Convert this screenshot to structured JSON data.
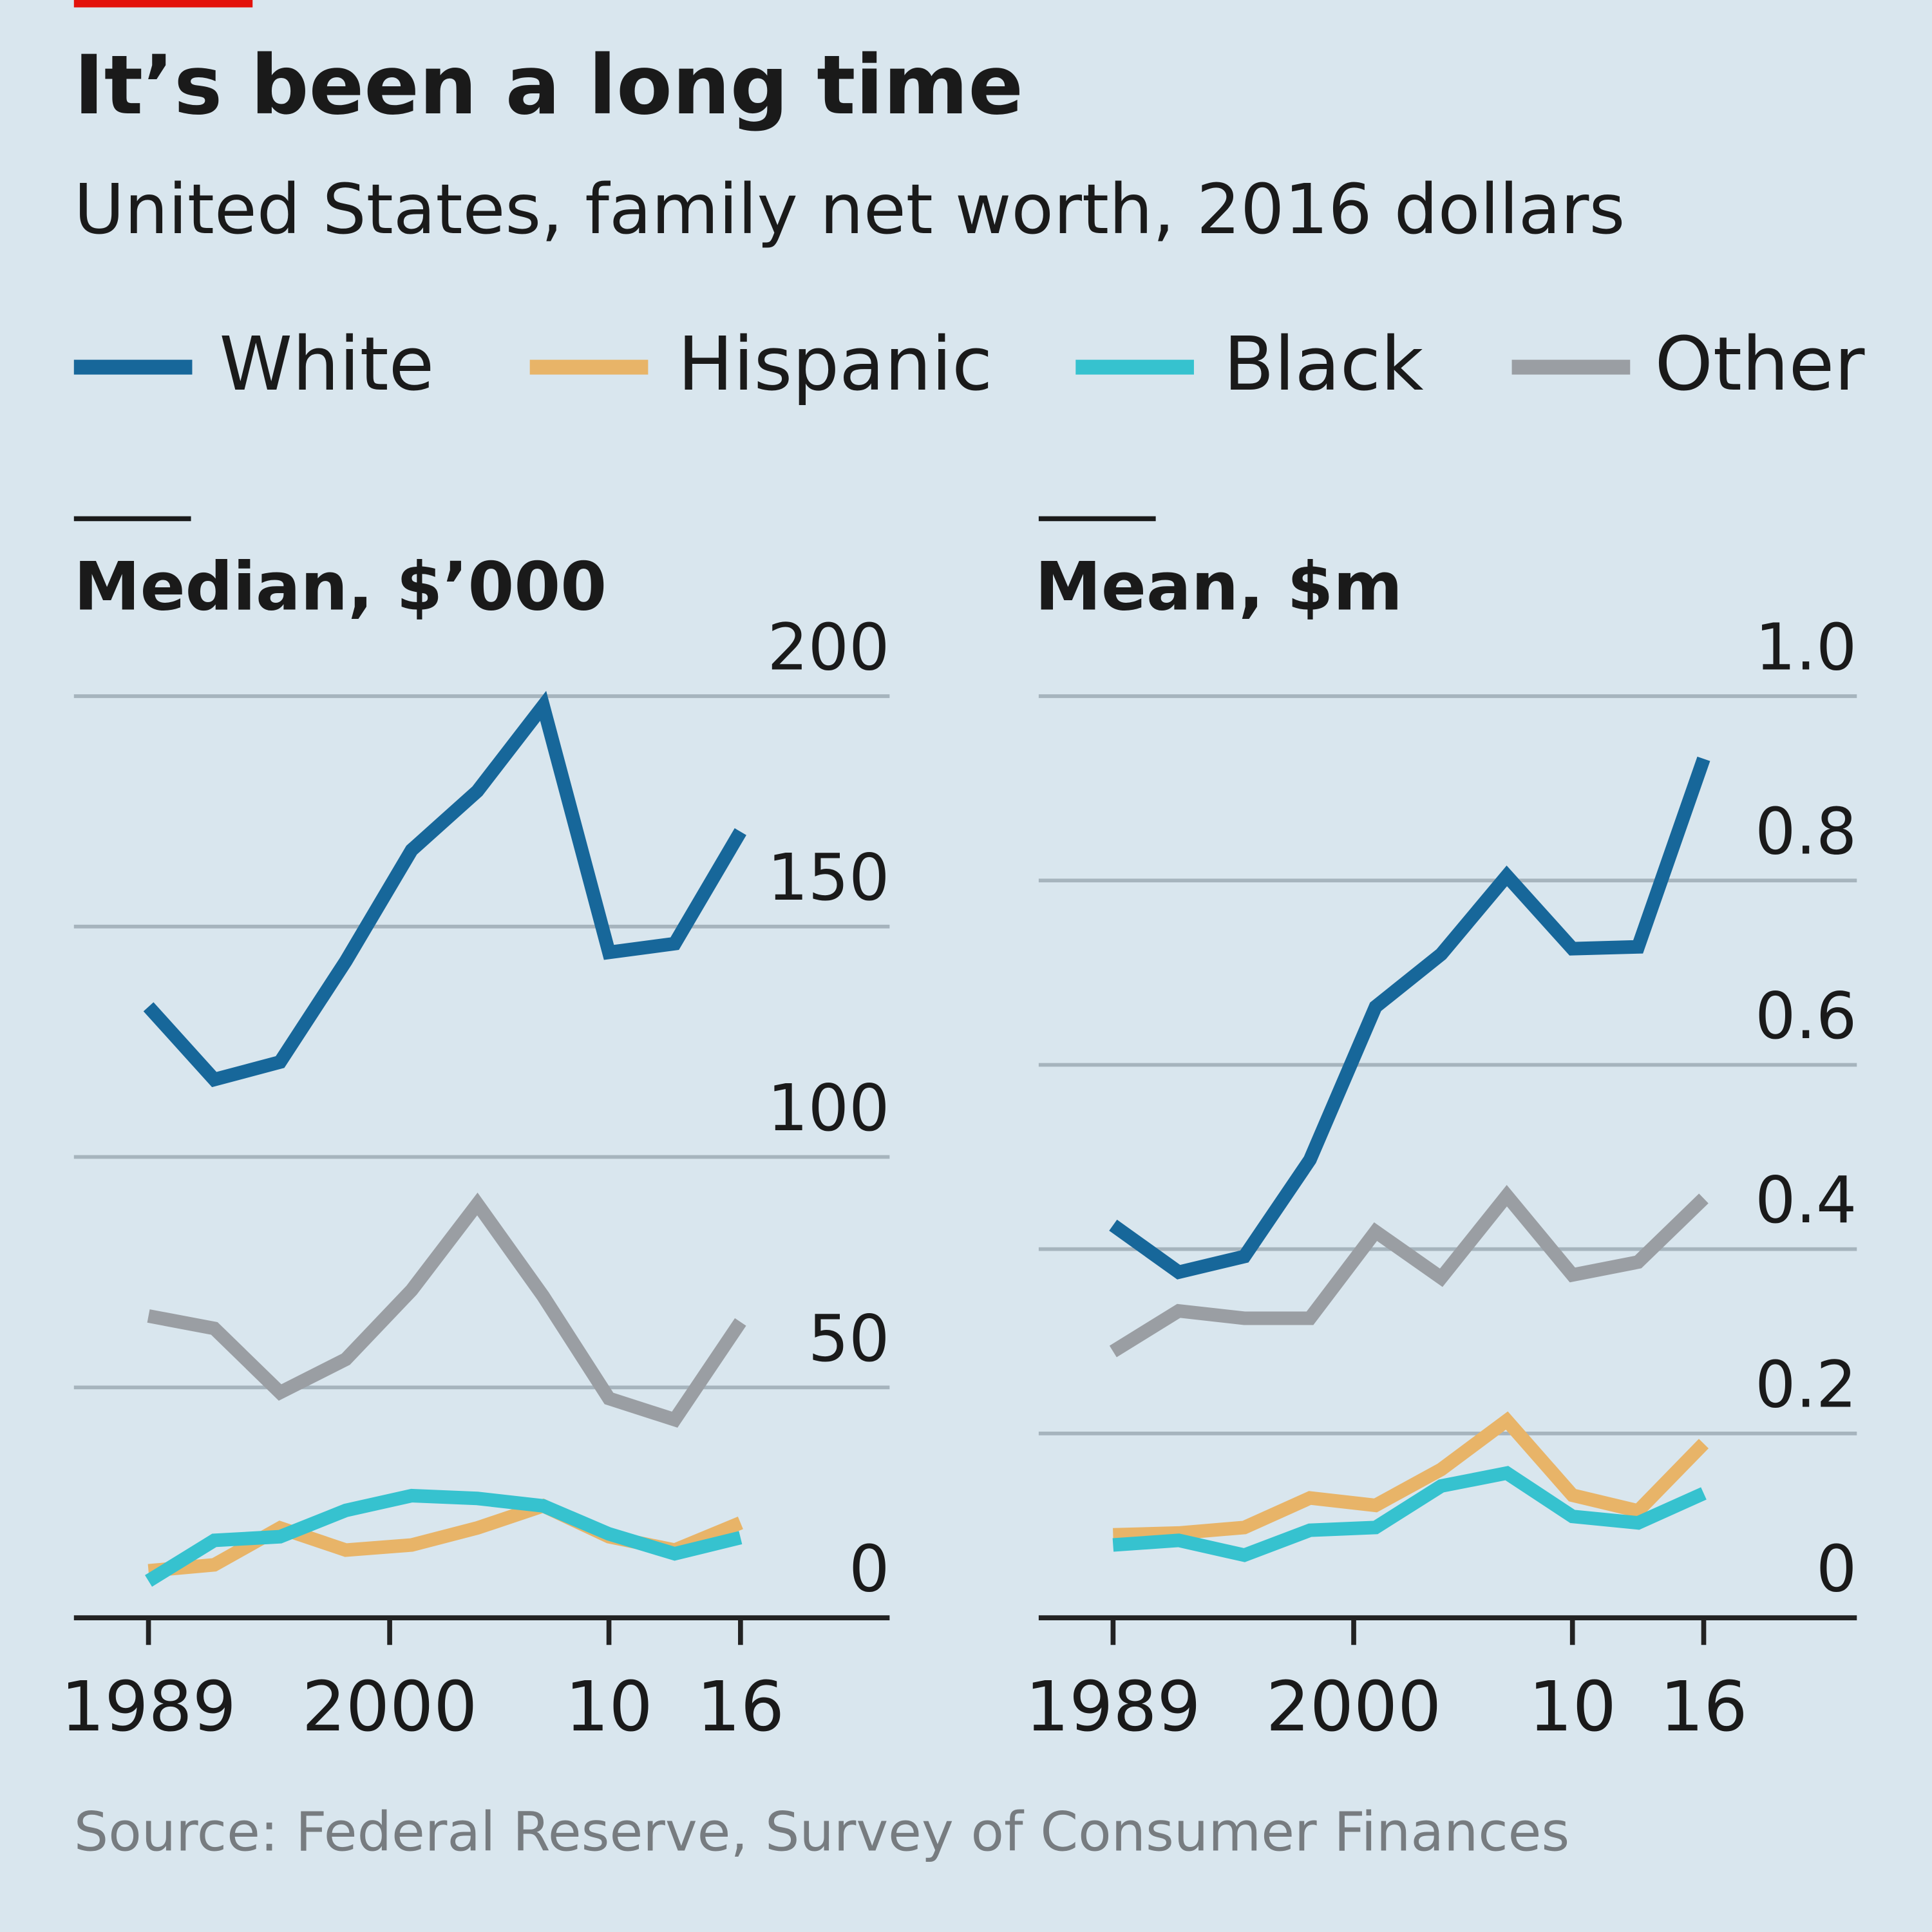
{
  "title": "It’s been a long time",
  "subtitle": "United States, family net worth, 2016 dollars",
  "source": "Source: Federal Reserve, Survey of Consumer Finances",
  "chart_data": [
    {
      "type": "line",
      "title": "Median, $’000",
      "x": [
        1989,
        1992,
        1995,
        1998,
        2001,
        2004,
        2007,
        2010,
        2013,
        2016
      ],
      "series": [
        {
          "name": "White",
          "color": "#17679a",
          "values": [
            132.6,
            116.8,
            120.6,
            142.5,
            166.6,
            179.4,
            197.9,
            144.4,
            146.3,
            170.6
          ]
        },
        {
          "name": "Hispanic",
          "color": "#e8b468",
          "values": [
            10.2,
            11.5,
            19.5,
            14.7,
            15.8,
            19.5,
            24.3,
            17.6,
            14.7,
            20.6
          ]
        },
        {
          "name": "Black",
          "color": "#36c2cf",
          "values": [
            8.0,
            16.8,
            17.6,
            23.3,
            26.5,
            25.9,
            24.3,
            18.2,
            13.9,
            17.4
          ]
        },
        {
          "name": "Other",
          "color": "#9a9ea3",
          "values": [
            65.5,
            62.8,
            48.9,
            56.1,
            71.1,
            89.8,
            69.8,
            47.6,
            43.0,
            64.2
          ]
        }
      ],
      "xlim": [
        1985.6,
        2022.8
      ],
      "xticks": [
        1989,
        2000,
        {
          "value": 2010,
          "label": "10"
        },
        {
          "value": 2016,
          "label": "16"
        }
      ],
      "ylim": [
        0,
        200
      ],
      "yticks": [
        0,
        50,
        100,
        150,
        200
      ]
    },
    {
      "type": "line",
      "title": "Mean, $m",
      "x": [
        1989,
        1992,
        1995,
        1998,
        2001,
        2004,
        2007,
        2010,
        2013,
        2016
      ],
      "series": [
        {
          "name": "White",
          "color": "#17679a",
          "values": [
            0.426,
            0.375,
            0.392,
            0.497,
            0.663,
            0.72,
            0.805,
            0.726,
            0.728,
            0.932
          ]
        },
        {
          "name": "Hispanic",
          "color": "#e8b468",
          "values": [
            0.09,
            0.092,
            0.098,
            0.13,
            0.122,
            0.161,
            0.214,
            0.133,
            0.116,
            0.189
          ]
        },
        {
          "name": "Black",
          "color": "#36c2cf",
          "values": [
            0.079,
            0.084,
            0.068,
            0.095,
            0.098,
            0.143,
            0.157,
            0.11,
            0.103,
            0.135
          ]
        },
        {
          "name": "Other",
          "color": "#9a9ea3",
          "values": [
            0.289,
            0.333,
            0.325,
            0.325,
            0.419,
            0.369,
            0.458,
            0.372,
            0.386,
            0.455
          ]
        }
      ],
      "xlim": [
        1985.6,
        2023
      ],
      "xticks": [
        1989,
        2000,
        {
          "value": 2010,
          "label": "10"
        },
        {
          "value": 2016,
          "label": "16"
        }
      ],
      "ylim": [
        0,
        1
      ],
      "yticks": [
        0,
        0.2,
        0.4,
        0.6,
        0.8,
        {
          "value": 1,
          "label": "1.0"
        }
      ]
    }
  ]
}
